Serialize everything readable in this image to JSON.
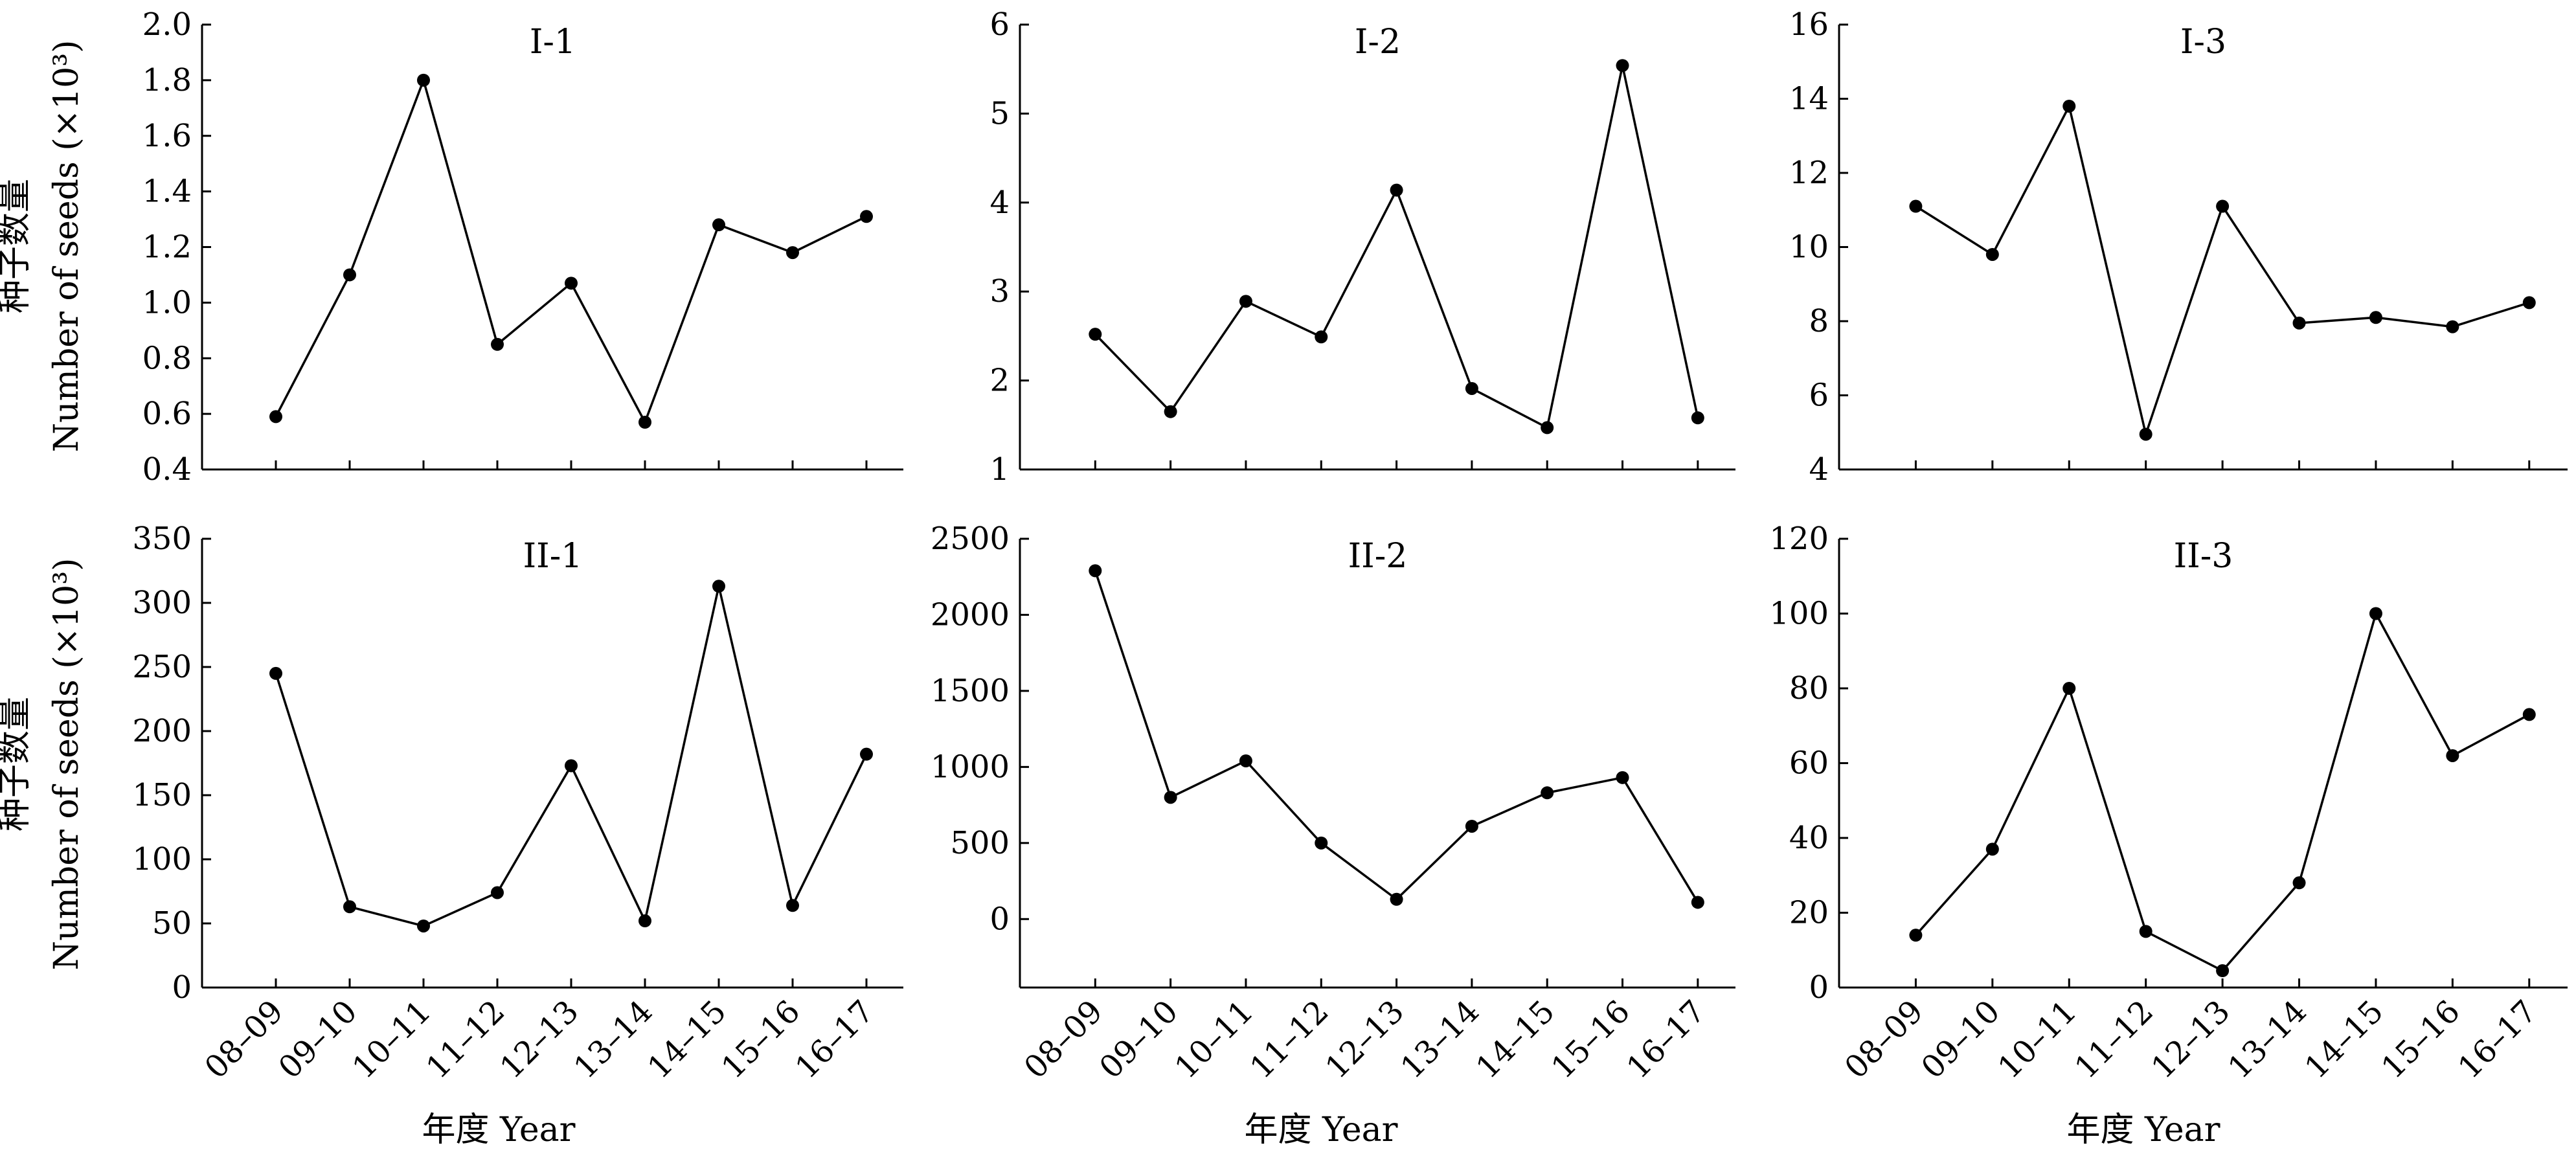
{
  "figure": {
    "y_axis_label_cn": "种子数量",
    "y_axis_label_en": "Number of seeds (×10³)",
    "x_axis_label": "年度 Year"
  },
  "chart_data": [
    {
      "type": "line",
      "title": "I-1",
      "categories": [
        "08–09",
        "09–10",
        "10–11",
        "11–12",
        "12–13",
        "13–14",
        "14–15",
        "15–16",
        "16–17"
      ],
      "values": [
        0.59,
        1.1,
        1.8,
        0.85,
        1.07,
        0.57,
        1.28,
        1.18,
        1.31
      ],
      "ylim": [
        0.4,
        2.0
      ],
      "yticks": [
        0.4,
        0.6,
        0.8,
        1.0,
        1.2,
        1.4,
        1.6,
        1.8,
        2.0
      ],
      "ytick_labels": [
        "0.4",
        "0.6",
        "0.8",
        "1.0",
        "1.2",
        "1.4",
        "1.6",
        "1.8",
        "2.0"
      ],
      "ylabel": "种子数量 Number of seeds (×10³)",
      "xlabel": "",
      "show_x_labels": false,
      "grid": false
    },
    {
      "type": "line",
      "title": "I-2",
      "categories": [
        "08–09",
        "09–10",
        "10–11",
        "11–12",
        "12–13",
        "13–14",
        "14–15",
        "15–16",
        "16–17"
      ],
      "values": [
        2.52,
        1.65,
        2.89,
        2.49,
        4.14,
        1.91,
        1.47,
        5.54,
        1.58
      ],
      "ylim": [
        1,
        6
      ],
      "yticks": [
        1,
        2,
        3,
        4,
        5,
        6
      ],
      "ytick_labels": [
        "1",
        "2",
        "3",
        "4",
        "5",
        "6"
      ],
      "ylabel": "",
      "xlabel": "",
      "show_x_labels": false,
      "grid": false
    },
    {
      "type": "line",
      "title": "I-3",
      "categories": [
        "08–09",
        "09–10",
        "10–11",
        "11–12",
        "12–13",
        "13–14",
        "14–15",
        "15–16",
        "16–17"
      ],
      "values": [
        11.1,
        9.8,
        13.8,
        4.95,
        11.1,
        7.95,
        8.1,
        7.85,
        8.5
      ],
      "ylim": [
        4,
        16
      ],
      "yticks": [
        4,
        6,
        8,
        10,
        12,
        14,
        16
      ],
      "ytick_labels": [
        "4",
        "6",
        "8",
        "10",
        "12",
        "14",
        "16"
      ],
      "ylabel": "",
      "xlabel": "",
      "show_x_labels": false,
      "grid": false
    },
    {
      "type": "line",
      "title": "II-1",
      "categories": [
        "08–09",
        "09–10",
        "10–11",
        "11–12",
        "12–13",
        "13–14",
        "14–15",
        "15–16",
        "16–17"
      ],
      "values": [
        245,
        63,
        48,
        74,
        173,
        52,
        313,
        64,
        182
      ],
      "ylim": [
        0,
        350
      ],
      "yticks": [
        0,
        50,
        100,
        150,
        200,
        250,
        300,
        350
      ],
      "ytick_labels": [
        "0",
        "50",
        "100",
        "150",
        "200",
        "250",
        "300",
        "350"
      ],
      "ylabel": "种子数量 Number of seeds (×10³)",
      "xlabel": "年度 Year",
      "show_x_labels": true,
      "grid": false
    },
    {
      "type": "line",
      "title": "II-2",
      "categories": [
        "08–09",
        "09–10",
        "10–11",
        "11–12",
        "12–13",
        "13–14",
        "14–15",
        "15–16",
        "16–17"
      ],
      "values": [
        2290,
        800,
        1040,
        500,
        130,
        610,
        830,
        930,
        110
      ],
      "ylim": [
        -450,
        2500
      ],
      "yticks": [
        0,
        500,
        1000,
        1500,
        2000,
        2500
      ],
      "ytick_labels": [
        "0",
        "500",
        "1000",
        "1500",
        "2000",
        "2500"
      ],
      "ylabel": "",
      "xlabel": "年度 Year",
      "show_x_labels": true,
      "grid": false
    },
    {
      "type": "line",
      "title": "II-3",
      "categories": [
        "08–09",
        "09–10",
        "10–11",
        "11–12",
        "12–13",
        "13–14",
        "14–15",
        "15–16",
        "16–17"
      ],
      "values": [
        14,
        37,
        80,
        15,
        4.5,
        28,
        100,
        62,
        73
      ],
      "ylim": [
        0,
        120
      ],
      "yticks": [
        0,
        20,
        40,
        60,
        80,
        100,
        120
      ],
      "ytick_labels": [
        "0",
        "20",
        "40",
        "60",
        "80",
        "100",
        "120"
      ],
      "ylabel": "",
      "xlabel": "年度 Year",
      "show_x_labels": true,
      "grid": false
    }
  ]
}
